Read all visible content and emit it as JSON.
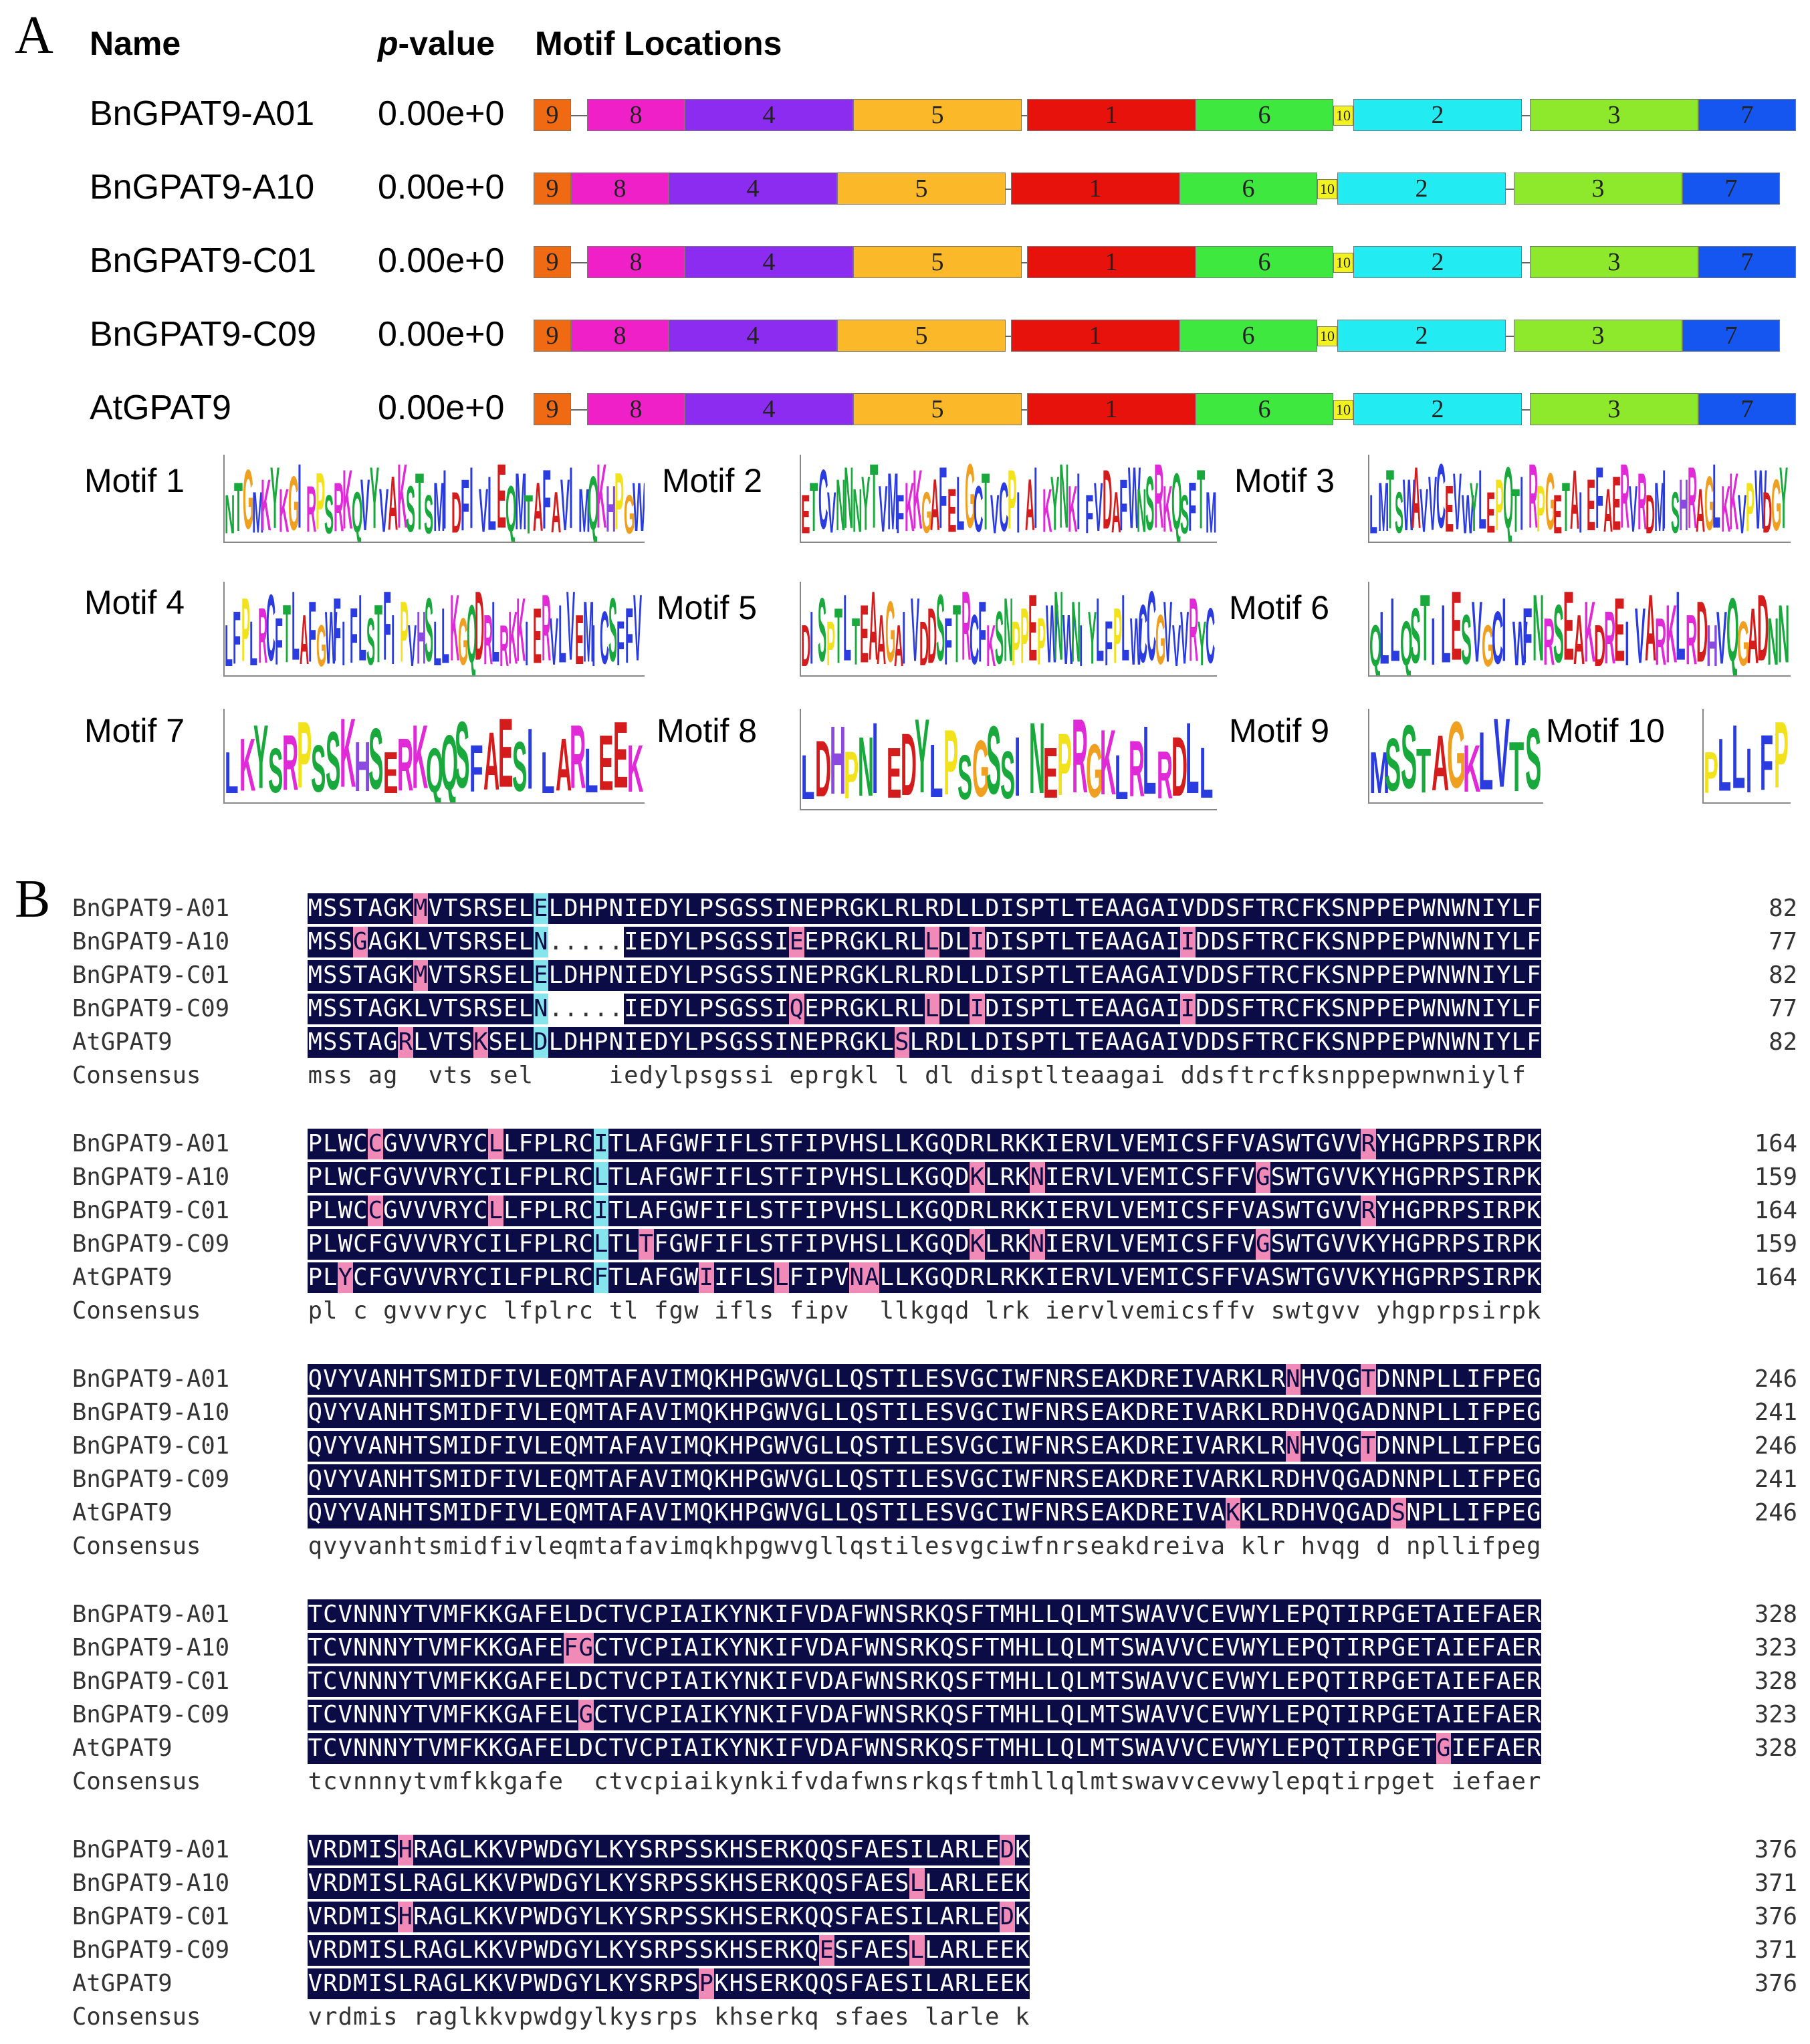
{
  "panels": {
    "a": "A",
    "b": "B"
  },
  "headers": {
    "name": "Name",
    "pvalue_italic": "p",
    "pvalue_rest": "-value",
    "locations": "Motif Locations"
  },
  "proteins": [
    {
      "name": "BnGPAT9-A01",
      "pvalue": "0.00e+0"
    },
    {
      "name": "BnGPAT9-A10",
      "pvalue": "0.00e+0"
    },
    {
      "name": "BnGPAT9-C01",
      "pvalue": "0.00e+0"
    },
    {
      "name": "BnGPAT9-C09",
      "pvalue": "0.00e+0"
    },
    {
      "name": "AtGPAT9",
      "pvalue": "0.00e+0"
    }
  ],
  "motif_colors": {
    "1": "#e8120c",
    "2": "#22ecf2",
    "3": "#8ee82c",
    "4": "#8c2cf0",
    "5": "#fbb828",
    "6": "#3ee83e",
    "7": "#1656f0",
    "8": "#f020c8",
    "9": "#f06a14",
    "10": "#f2f21e"
  },
  "motif_order": [
    "9",
    "8",
    "4",
    "5",
    "1",
    "6",
    "10",
    "2",
    "3",
    "7"
  ],
  "motif_logos": [
    {
      "label": "Motif 1",
      "seq": "NTGMKYKGIRPSRKQVYVAKSTSMIDFIVLEQMTAFAVIMQKHPGW"
    },
    {
      "label": "Motif 2",
      "seq": "ETCVNNNYTVMFKKGAFELGCTVCPIAIKYNKIFVDAFWNSRKQSFTM"
    },
    {
      "label": "Motif 3",
      "seq": "LMTSWAVVCEVWYLEPQTIRPGETAIEFAERVRDMISHRAGLKKVPWDGY"
    },
    {
      "label": "Motif 4",
      "seq": "LFPLRCFTLAFGWFIFLSTFIPVHSLLKGQDRLRKKIERVLVEMICSFFV"
    },
    {
      "label": "Motif 5",
      "seq": "DISPTLTEAAGAIVDDSFTRCFKSNPPEPWNWNIYLFPLWCCGVVVRYC"
    },
    {
      "label": "Motif 6",
      "seq": "QLLQSTILESVGCIWFNRSEAKDREIVARKLRDHVQGADNN"
    },
    {
      "label": "Motif 7",
      "seq": "LKYSRPSSKHSERKQQSFAESILARLEEK"
    },
    {
      "label": "Motif 8",
      "seq": "LDHPNIEDYLPSGSSINEPRGKLRLRDLL"
    },
    {
      "label": "Motif 9",
      "seq": "MSSTAGKLVTS"
    },
    {
      "label": "Motif 10",
      "seq": "PLLIFP"
    }
  ],
  "logo_colors": {
    "A": "#d41c1c",
    "C": "#2a3be0",
    "D": "#d41c1c",
    "E": "#d41c1c",
    "F": "#2a3be0",
    "G": "#f0a020",
    "H": "#8a4ae0",
    "I": "#2a3be0",
    "K": "#e02ad8",
    "L": "#2a3be0",
    "M": "#2a3be0",
    "N": "#18a83c",
    "P": "#f2e21c",
    "Q": "#18a83c",
    "R": "#e02ad8",
    "S": "#18a83c",
    "T": "#18a83c",
    "V": "#2a3be0",
    "W": "#2a3be0",
    "Y": "#18a83c"
  },
  "alignment": {
    "consensus_label": "Consensus",
    "names": [
      "BnGPAT9-A01",
      "BnGPAT9-A10",
      "BnGPAT9-C01",
      "BnGPAT9-C09",
      "AtGPAT9"
    ],
    "blocks": [
      {
        "seqs": [
          "MSSTAGKMVTSRSELELDHPNIEDYLPSGSSINEPRGKLRLRDLLDISPTLTEAAGAIVDDSFTRCFKSNPPEPWNWNIYLF",
          "MSSGAGKLVTSRSELN.....IEDYLPSGSSIEEPRGKLRLLDLIDISPTLTEAAGAIIDDSFTRCFKSNPPEPWNWNIYLF",
          "MSSTAGKMVTSRSELELDHPNIEDYLPSGSSINEPRGKLRLRDLLDISPTLTEAAGAIVDDSFTRCFKSNPPEPWNWNIYLF",
          "MSSTAGKLVTSRSELN.....IEDYLPSGSSIQEPRGKLRLLDLIDISPTLTEAAGAIIDDSFTRCFKSNPPEPWNWNIYLF",
          "MSSTAGRLVTSKSELDLDHPNIEDYLPSGSSINEPRGKLSLRDLLDISPTLTEAAGAIVDDSFTRCFKSNPPEPWNWNIYLF"
        ],
        "ends": [
          "82",
          "77",
          "82",
          "77",
          "82"
        ],
        "consensus": "mss ag  vts sel     iedylpsgssi eprgkl l dl disptlteaagai ddsftrcfksnppepwnwniylf"
      },
      {
        "seqs": [
          "PLWCCGVVVRYCLLFPLRCITLAFGWFIFLSTFIPVHSLLKGQDRLRKKIERVLVEMICSFFVASWTGVVRYHGPRPSIRPK",
          "PLWCFGVVVRYCILFPLRCLTLAFGWFIFLSTFIPVHSLLKGQDKLRKNIERVLVEMICSFFVGSWTGVVKYHGPRPSIRPK",
          "PLWCCGVVVRYCLLFPLRCITLAFGWFIFLSTFIPVHSLLKGQDRLRKKIERVLVEMICSFFVASWTGVVRYHGPRPSIRPK",
          "PLWCFGVVVRYCILFPLRCLTLTFGWFIFLSTFIPVHSLLKGQDKLRKNIERVLVEMICSFFVGSWTGVVKYHGPRPSIRPK",
          "PLYCFGVVVRYCILFPLRCFTLAFGWIIFLSLFIPVNALLKGQDRLRKKIERVLVEMICSFFVASWTGVVKYHGPRPSIRPK"
        ],
        "ends": [
          "164",
          "159",
          "164",
          "159",
          "164"
        ],
        "consensus": "pl c gvvvryc lfplrc tl fgw ifls fipv  llkgqd lrk iervlvemicsffv swtgvv yhgprpsirpk"
      },
      {
        "seqs": [
          "QVYVANHTSMIDFIVLEQMTAFAVIMQKHPGWVGLLQSTILESVGCIWFNRSEAKDREIVARKLRNHVQGTDNNPLLIFPEG",
          "QVYVANHTSMIDFIVLEQMTAFAVIMQKHPGWVGLLQSTILESVGCIWFNRSEAKDREIVARKLRDHVQGADNNPLLIFPEG",
          "QVYVANHTSMIDFIVLEQMTAFAVIMQKHPGWVGLLQSTILESVGCIWFNRSEAKDREIVARKLRNHVQGTDNNPLLIFPEG",
          "QVYVANHTSMIDFIVLEQMTAFAVIMQKHPGWVGLLQSTILESVGCIWFNRSEAKDREIVARKLRDHVQGADNNPLLIFPEG",
          "QVYVANHTSMIDFIVLEQMTAFAVIMQKHPGWVGLLQSTILESVGCIWFNRSEAKDREIVAKKLRDHVQGADSNPLLIFPEG"
        ],
        "ends": [
          "246",
          "241",
          "246",
          "241",
          "246"
        ],
        "consensus": "qvyvanhtsmidfivleqmtafavimqkhpgwvgllqstilesvgciwfnrseakdreiva klr hvqg d npllifpeg"
      },
      {
        "seqs": [
          "TCVNNNYTVMFKKGAFELDCTVCPIAIKYNKIFVDAFWNSRKQSFTMHLLQLMTSWAVVCEVWYLEPQTIRPGETAIEFAER",
          "TCVNNNYTVMFKKGAFEFGCTVCPIAIKYNKIFVDAFWNSRKQSFTMHLLQLMTSWAVVCEVWYLEPQTIRPGETAIEFAER",
          "TCVNNNYTVMFKKGAFELDCTVCPIAIKYNKIFVDAFWNSRKQSFTMHLLQLMTSWAVVCEVWYLEPQTIRPGETAIEFAER",
          "TCVNNNYTVMFKKGAFELGCTVCPIAIKYNKIFVDAFWNSRKQSFTMHLLQLMTSWAVVCEVWYLEPQTIRPGETAIEFAER",
          "TCVNNNYTVMFKKGAFELDCTVCPIAIKYNKIFVDAFWNSRKQSFTMHLLQLMTSWAVVCEVWYLEPQTIRPGETGIEFAER"
        ],
        "ends": [
          "328",
          "323",
          "328",
          "323",
          "328"
        ],
        "consensus": "tcvnnnytvmfkkgafe  ctvcpiaikynkifvdafwnsrkqsftmhllqlmtswavvcevwylepqtirpget iefaer"
      },
      {
        "seqs": [
          "VRDMISHRAGLKKVPWDGYLKYSRPSSKHSERKQQSFAESILARLEDK",
          "VRDMISLRAGLKKVPWDGYLKYSRPSSKHSERKQQSFAESLLARLEEK",
          "VRDMISHRAGLKKVPWDGYLKYSRPSSKHSERKQQSFAESILARLEDK",
          "VRDMISLRAGLKKVPWDGYLKYSRPSSKHSERKQESFAESLLARLEEK",
          "VRDMISLRAGLKKVPWDGYLKYSRPSPKHSERKQQSFAESILARLEEK"
        ],
        "ends": [
          "376",
          "371",
          "376",
          "371",
          "376"
        ],
        "consensus": "vrdmis raglkkvpwdgylkysrps khserkq sfaes larle k"
      }
    ]
  }
}
